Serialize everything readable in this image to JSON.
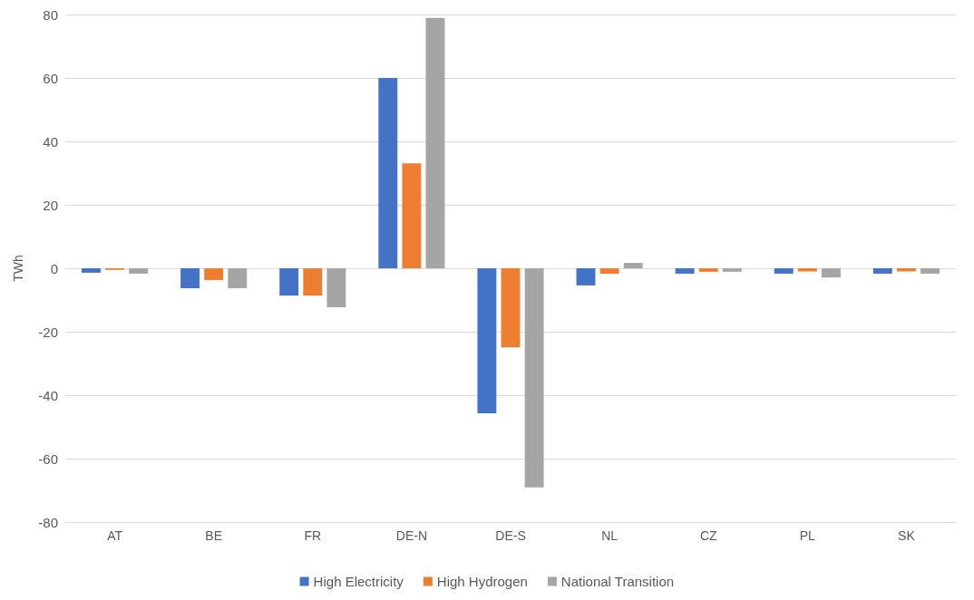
{
  "chart_data": {
    "type": "bar",
    "ylabel": "TWh",
    "categories": [
      "AT",
      "BE",
      "FR",
      "DE-N",
      "DE-S",
      "NL",
      "CZ",
      "PL",
      "SK"
    ],
    "series": [
      {
        "name": "High Electricity",
        "color": "#4472c4",
        "values": [
          -1.4,
          -6.3,
          -8.6,
          60,
          -45.7,
          -5.4,
          -1.7,
          -1.7,
          -1.7
        ]
      },
      {
        "name": "High Hydrogen",
        "color": "#ed7d31",
        "values": [
          -0.5,
          -3.7,
          -8.6,
          33.1,
          -24.9,
          -1.7,
          -1.1,
          -1,
          -1
        ]
      },
      {
        "name": "National Transition",
        "color": "#a5a5a5",
        "values": [
          -1.7,
          -6.3,
          -12.3,
          78.9,
          -69.1,
          1.7,
          -1.1,
          -2.9,
          -1.7
        ]
      }
    ],
    "ylim": [
      -80,
      80
    ],
    "yticks": [
      -80,
      -60,
      -40,
      -20,
      0,
      20,
      40,
      60,
      80
    ],
    "grid": "y",
    "legend": "bottom"
  }
}
